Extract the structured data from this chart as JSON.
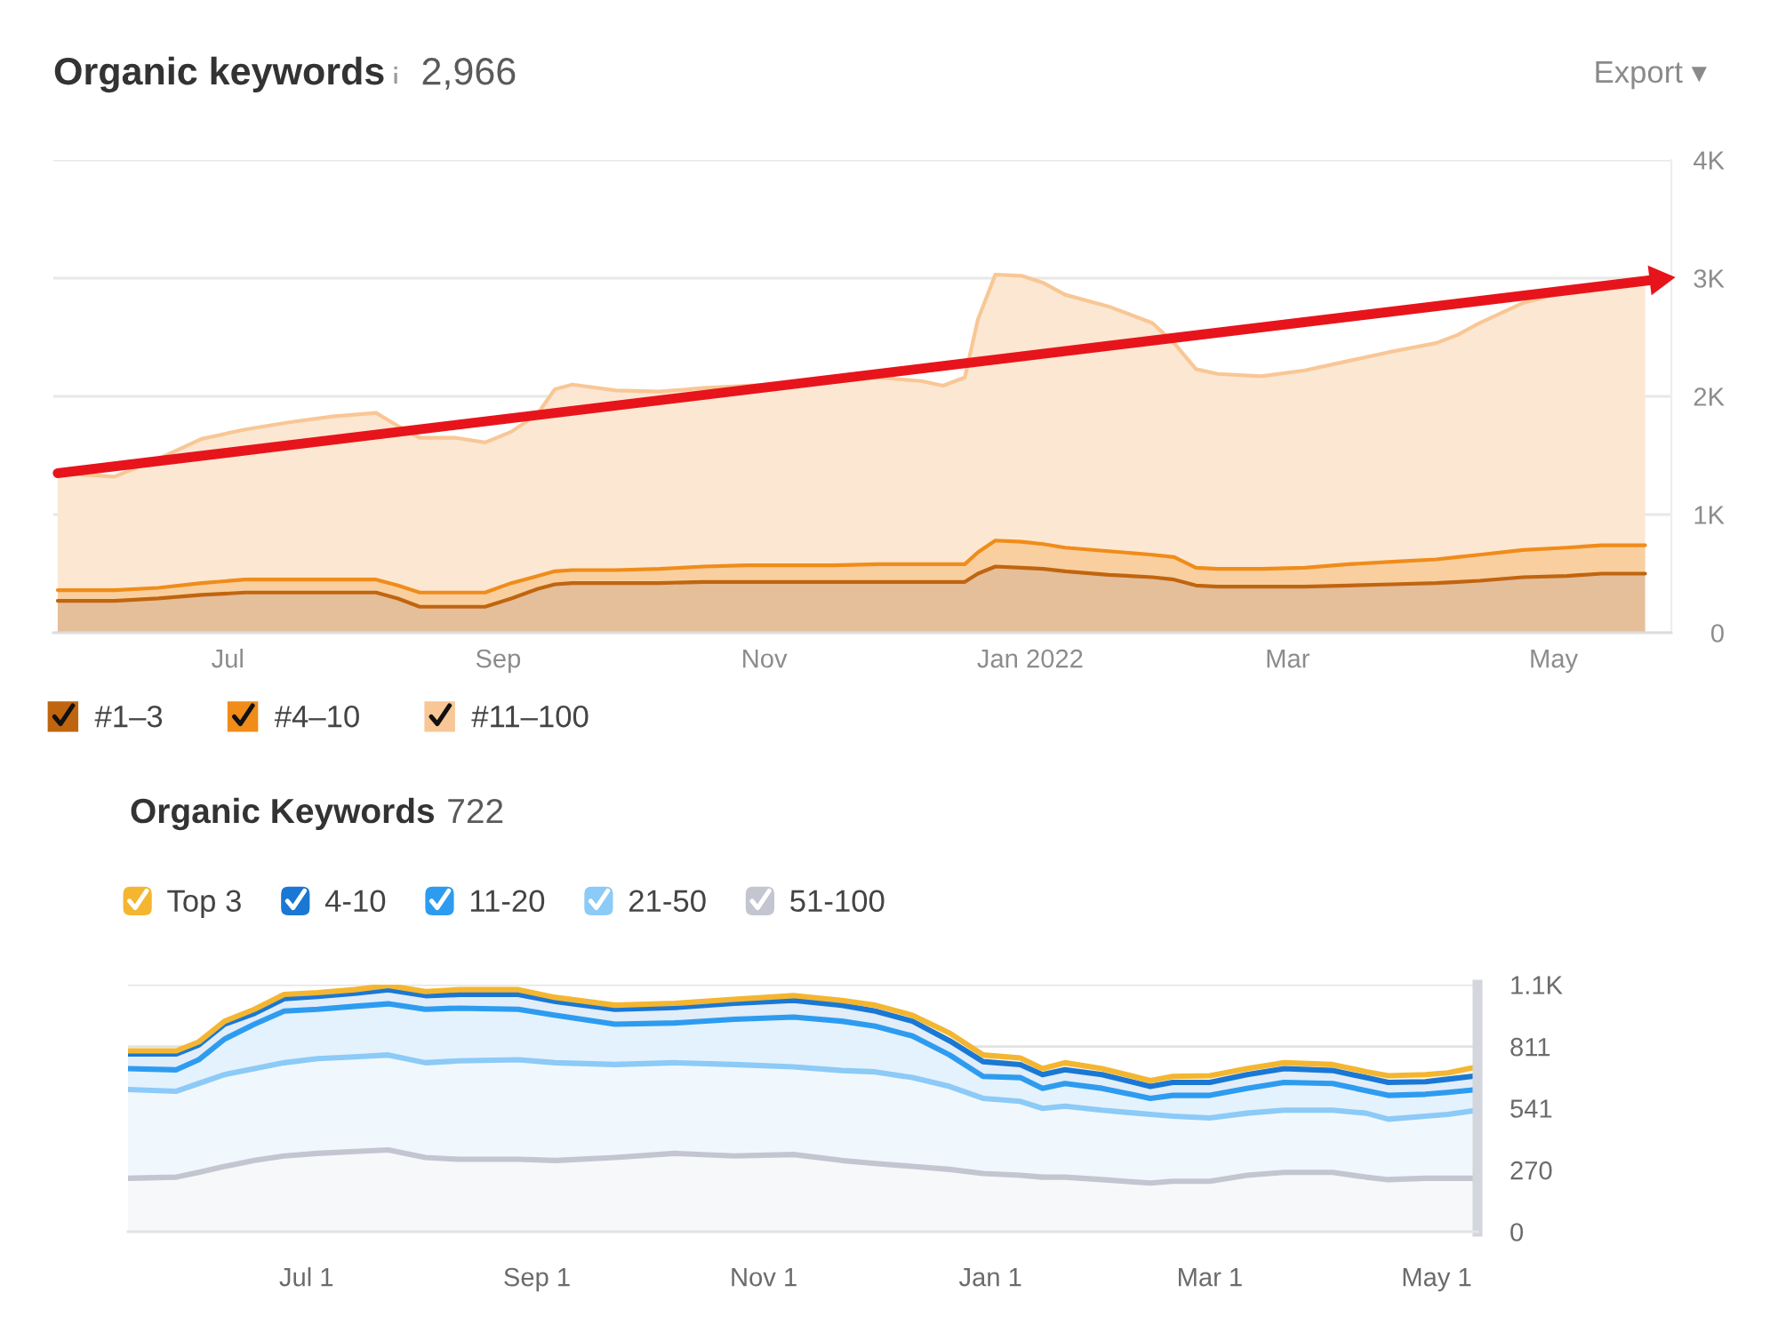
{
  "chart_data": [
    {
      "type": "area",
      "stacked": true,
      "title": "Organic keywords",
      "subtitle": "2,966",
      "annotations": [
        "Export ▾"
      ],
      "xlim": [
        "2021-05-22",
        "2022-05-28"
      ],
      "xticks": [
        {
          "value": "2021-07-01",
          "label": "Jul"
        },
        {
          "value": "2021-09-01",
          "label": "Sep"
        },
        {
          "value": "2021-11-01",
          "label": "Nov"
        },
        {
          "value": "2022-01-01",
          "label": "Jan 2022"
        },
        {
          "value": "2022-03-01",
          "label": "Mar"
        },
        {
          "value": "2022-05-01",
          "label": "May"
        }
      ],
      "ylim": [
        0,
        4000
      ],
      "yticks": [
        0,
        {
          "value": 1000,
          "label": "1K"
        },
        {
          "value": 2000,
          "label": "2K"
        },
        {
          "value": 3000,
          "label": "3K"
        },
        {
          "value": 4000,
          "label": "4K"
        }
      ],
      "grid": "y",
      "legend": "bottom left",
      "x": [
        "2021-05-23",
        "2021-06-05",
        "2021-06-15",
        "2021-06-25",
        "2021-07-05",
        "2021-07-15",
        "2021-07-25",
        "2021-08-04",
        "2021-08-09",
        "2021-08-14",
        "2021-08-22",
        "2021-08-29",
        "2021-09-04",
        "2021-09-10",
        "2021-09-14",
        "2021-09-18",
        "2021-09-28",
        "2021-10-08",
        "2021-10-18",
        "2021-10-28",
        "2021-11-07",
        "2021-11-17",
        "2021-11-27",
        "2021-12-07",
        "2021-12-12",
        "2021-12-17",
        "2021-12-20",
        "2021-12-24",
        "2021-12-30",
        "2022-01-04",
        "2022-01-09",
        "2022-01-19",
        "2022-01-29",
        "2022-02-03",
        "2022-02-08",
        "2022-02-13",
        "2022-02-23",
        "2022-03-05",
        "2022-03-15",
        "2022-03-25",
        "2022-04-04",
        "2022-04-09",
        "2022-04-14",
        "2022-04-24",
        "2022-05-04",
        "2022-05-12",
        "2022-05-22"
      ],
      "series": [
        {
          "name": "#1–3",
          "color": "#c0650f",
          "values": [
            270,
            270,
            290,
            320,
            340,
            340,
            340,
            340,
            290,
            220,
            220,
            220,
            290,
            370,
            410,
            420,
            420,
            420,
            430,
            430,
            430,
            430,
            430,
            430,
            430,
            430,
            500,
            560,
            550,
            540,
            520,
            490,
            470,
            450,
            400,
            390,
            390,
            390,
            400,
            410,
            420,
            430,
            440,
            470,
            480,
            500,
            500
          ]
        },
        {
          "name": "#4–10",
          "color": "#f08c1a",
          "values": [
            90,
            90,
            90,
            100,
            110,
            110,
            110,
            110,
            110,
            120,
            120,
            120,
            130,
            110,
            110,
            110,
            110,
            120,
            130,
            140,
            140,
            140,
            150,
            150,
            150,
            150,
            180,
            220,
            220,
            210,
            200,
            200,
            190,
            190,
            150,
            150,
            150,
            160,
            180,
            190,
            200,
            210,
            220,
            230,
            240,
            240,
            240
          ]
        },
        {
          "name": "#11–100",
          "color": "#f8c795",
          "values": [
            990,
            960,
            1090,
            1220,
            1270,
            1330,
            1380,
            1410,
            1350,
            1310,
            1310,
            1270,
            1280,
            1370,
            1540,
            1570,
            1520,
            1500,
            1510,
            1520,
            1540,
            1550,
            1580,
            1550,
            1510,
            1580,
            1970,
            2250,
            2250,
            2210,
            2140,
            2070,
            1960,
            1810,
            1680,
            1650,
            1630,
            1670,
            1720,
            1780,
            1830,
            1880,
            1960,
            2090,
            2170,
            2200,
            2230
          ]
        },
        {
          "type": "line",
          "color": "#e8141b",
          "x": [
            "2021-05-23",
            "2022-05-25"
          ],
          "values": [
            1350,
            2990
          ]
        }
      ]
    },
    {
      "type": "area",
      "stacked": true,
      "title": "Organic Keywords",
      "subtitle": "722",
      "xlim": [
        "2021-05-14",
        "2022-05-12"
      ],
      "xticks": [
        {
          "value": "2021-07-01",
          "label": "Jul 1"
        },
        {
          "value": "2021-09-01",
          "label": "Sep 1"
        },
        {
          "value": "2021-11-01",
          "label": "Nov 1"
        },
        {
          "value": "2022-01-01",
          "label": "Jan 1"
        },
        {
          "value": "2022-03-01",
          "label": "Mar 1"
        },
        {
          "value": "2022-05-01",
          "label": "May 1"
        }
      ],
      "ylim": [
        0,
        1082
      ],
      "yticks": [
        0,
        270,
        541,
        811,
        {
          "value": 1082,
          "label": "1.1K"
        }
      ],
      "grid": "y",
      "legend": "top left",
      "x": [
        "2021-05-14",
        "2021-05-27",
        "2021-06-02",
        "2021-06-09",
        "2021-06-17",
        "2021-06-25",
        "2021-07-04",
        "2021-07-14",
        "2021-07-23",
        "2021-08-02",
        "2021-08-11",
        "2021-08-27",
        "2021-09-06",
        "2021-09-22",
        "2021-10-08",
        "2021-10-24",
        "2021-11-09",
        "2021-11-22",
        "2021-12-01",
        "2021-12-11",
        "2021-12-21",
        "2021-12-30",
        "2022-01-09",
        "2022-01-15",
        "2022-01-21",
        "2022-01-31",
        "2022-02-13",
        "2022-02-19",
        "2022-03-01",
        "2022-03-11",
        "2022-03-21",
        "2022-04-03",
        "2022-04-12",
        "2022-04-18",
        "2022-04-28",
        "2022-05-04",
        "2022-05-12"
      ],
      "series": [
        {
          "name": "51-100",
          "color": "#c3c6d0",
          "values": [
            234,
            239,
            260,
            286,
            312,
            332,
            343,
            351,
            358,
            325,
            317,
            317,
            312,
            325,
            343,
            332,
            338,
            312,
            299,
            286,
            273,
            255,
            247,
            239,
            239,
            228,
            213,
            221,
            221,
            247,
            260,
            260,
            239,
            228,
            234,
            234,
            234
          ]
        },
        {
          "name": "21-50",
          "color": "#8ccaf7",
          "values": [
            389,
            376,
            389,
            402,
            402,
            408,
            415,
            415,
            416,
            415,
            431,
            436,
            428,
            407,
            397,
            400,
            384,
            394,
            401,
            389,
            363,
            329,
            324,
            301,
            311,
            304,
            301,
            285,
            277,
            272,
            272,
            272,
            280,
            265,
            272,
            280,
            298
          ]
        },
        {
          "name": "11-20",
          "color": "#2d9cf0",
          "values": [
            91,
            94,
            104,
            156,
            195,
            226,
            216,
            221,
            224,
            234,
            231,
            221,
            208,
            177,
            174,
            198,
            218,
            216,
            200,
            182,
            138,
            96,
            104,
            88,
            99,
            96,
            70,
            91,
            99,
            109,
            122,
            117,
            99,
            104,
            96,
            96,
            91
          ]
        },
        {
          "name": "4-10",
          "color": "#1a78d4",
          "values": [
            65,
            70,
            65,
            65,
            47,
            55,
            57,
            57,
            62,
            60,
            60,
            65,
            60,
            65,
            68,
            70,
            73,
            70,
            66,
            65,
            62,
            65,
            57,
            60,
            60,
            60,
            52,
            57,
            57,
            60,
            60,
            57,
            57,
            57,
            55,
            58,
            60
          ]
        },
        {
          "name": "Top 3",
          "color": "#f4b630",
          "values": [
            13,
            13,
            13,
            13,
            18,
            18,
            16,
            16,
            18,
            18,
            21,
            21,
            18,
            18,
            18,
            18,
            21,
            21,
            26,
            26,
            34,
            29,
            29,
            26,
            31,
            26,
            26,
            26,
            29,
            26,
            26,
            26,
            26,
            29,
            31,
            28,
            39
          ]
        }
      ]
    }
  ]
}
